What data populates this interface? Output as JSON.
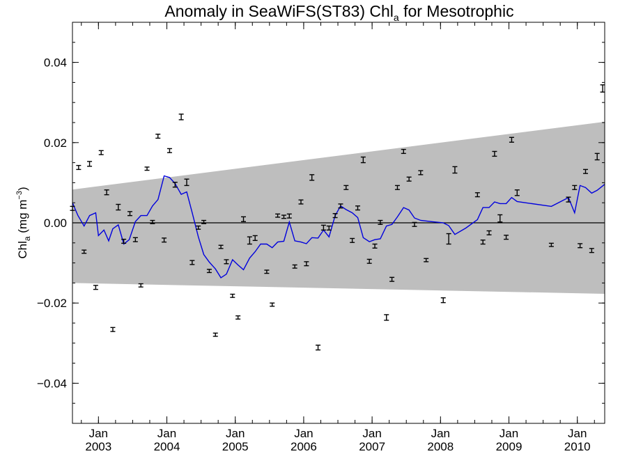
{
  "chart_data": {
    "type": "line",
    "title_main": "Anomaly in SeaWiFS(ST83) Chl",
    "title_sub": "a",
    "title_tail": " for Mesotrophic",
    "ylabel_main": "Chl",
    "ylabel_sub": "a",
    "ylabel_units_pre": " (mg m",
    "ylabel_units_sup": "−3",
    "ylabel_units_post": ")",
    "xlim": [
      2002.62,
      2010.4
    ],
    "ylim": [
      -0.05,
      0.05
    ],
    "y_ticks": [
      {
        "value": -0.04,
        "label": "−0.04"
      },
      {
        "value": -0.02,
        "label": "−0.02"
      },
      {
        "value": 0.0,
        "label": "0.00"
      },
      {
        "value": 0.02,
        "label": "0.02"
      },
      {
        "value": 0.04,
        "label": "0.04"
      }
    ],
    "x_ticks": [
      {
        "value": 2003.0,
        "month": "Jan",
        "year": "2003"
      },
      {
        "value": 2004.0,
        "month": "Jan",
        "year": "2004"
      },
      {
        "value": 2005.0,
        "month": "Jan",
        "year": "2005"
      },
      {
        "value": 2006.0,
        "month": "Jan",
        "year": "2006"
      },
      {
        "value": 2007.0,
        "month": "Jan",
        "year": "2007"
      },
      {
        "value": 2008.0,
        "month": "Jan",
        "year": "2008"
      },
      {
        "value": 2009.0,
        "month": "Jan",
        "year": "2009"
      },
      {
        "value": 2010.0,
        "month": "Jan",
        "year": "2010"
      }
    ],
    "zero_line": 0.0,
    "band": {
      "x": [
        2002.62,
        2010.4
      ],
      "upper": [
        0.0083,
        0.0252
      ],
      "lower": [
        -0.015,
        -0.0177
      ],
      "color": "#bebebe"
    },
    "line_color": "#0000dd",
    "point_color": "#000000",
    "points": [
      {
        "x": 2002.62,
        "y": 0.0036,
        "e": 0.0005
      },
      {
        "x": 2002.71,
        "y": 0.0138,
        "e": 0.0005
      },
      {
        "x": 2002.79,
        "y": -0.0072,
        "e": 0.0004
      },
      {
        "x": 2002.87,
        "y": 0.0147,
        "e": 0.0006
      },
      {
        "x": 2002.96,
        "y": -0.0161,
        "e": 0.0005
      },
      {
        "x": 2003.04,
        "y": 0.0175,
        "e": 0.0005
      },
      {
        "x": 2003.12,
        "y": 0.0076,
        "e": 0.0006
      },
      {
        "x": 2003.21,
        "y": -0.0266,
        "e": 0.0005
      },
      {
        "x": 2003.29,
        "y": 0.0039,
        "e": 0.0007
      },
      {
        "x": 2003.37,
        "y": -0.0046,
        "e": 0.0005
      },
      {
        "x": 2003.46,
        "y": 0.0023,
        "e": 0.0005
      },
      {
        "x": 2003.54,
        "y": -0.0042,
        "e": 0.0005
      },
      {
        "x": 2003.62,
        "y": -0.0156,
        "e": 0.0004
      },
      {
        "x": 2003.71,
        "y": 0.0135,
        "e": 0.0004
      },
      {
        "x": 2003.79,
        "y": 0.0002,
        "e": 0.0004
      },
      {
        "x": 2003.87,
        "y": 0.0216,
        "e": 0.0005
      },
      {
        "x": 2003.96,
        "y": -0.0043,
        "e": 0.0005
      },
      {
        "x": 2004.04,
        "y": 0.018,
        "e": 0.0005
      },
      {
        "x": 2004.12,
        "y": 0.0095,
        "e": 0.0006
      },
      {
        "x": 2004.21,
        "y": 0.0264,
        "e": 0.0007
      },
      {
        "x": 2004.29,
        "y": 0.0101,
        "e": 0.0008
      },
      {
        "x": 2004.37,
        "y": -0.0099,
        "e": 0.0005
      },
      {
        "x": 2004.46,
        "y": -0.0012,
        "e": 0.0004
      },
      {
        "x": 2004.54,
        "y": 0.0002,
        "e": 0.0004
      },
      {
        "x": 2004.62,
        "y": -0.012,
        "e": 0.0004
      },
      {
        "x": 2004.71,
        "y": -0.0279,
        "e": 0.0004
      },
      {
        "x": 2004.79,
        "y": -0.006,
        "e": 0.0004
      },
      {
        "x": 2004.87,
        "y": -0.0097,
        "e": 0.0005
      },
      {
        "x": 2004.96,
        "y": -0.0182,
        "e": 0.0004
      },
      {
        "x": 2005.04,
        "y": -0.0236,
        "e": 0.0004
      },
      {
        "x": 2005.12,
        "y": 0.0009,
        "e": 0.0006
      },
      {
        "x": 2005.21,
        "y": -0.0044,
        "e": 0.0009
      },
      {
        "x": 2005.29,
        "y": -0.0038,
        "e": 0.0006
      },
      {
        "x": 2005.46,
        "y": -0.0122,
        "e": 0.0004
      },
      {
        "x": 2005.54,
        "y": -0.0204,
        "e": 0.0004
      },
      {
        "x": 2005.62,
        "y": 0.0018,
        "e": 0.0004
      },
      {
        "x": 2005.71,
        "y": 0.0015,
        "e": 0.0004
      },
      {
        "x": 2005.79,
        "y": 0.0017,
        "e": 0.0005
      },
      {
        "x": 2005.87,
        "y": -0.0109,
        "e": 0.0004
      },
      {
        "x": 2005.96,
        "y": 0.0052,
        "e": 0.0005
      },
      {
        "x": 2006.04,
        "y": -0.0102,
        "e": 0.0005
      },
      {
        "x": 2006.12,
        "y": 0.0113,
        "e": 0.0007
      },
      {
        "x": 2006.21,
        "y": -0.0311,
        "e": 0.0006
      },
      {
        "x": 2006.29,
        "y": -0.0012,
        "e": 0.0006
      },
      {
        "x": 2006.37,
        "y": -0.0013,
        "e": 0.0005
      },
      {
        "x": 2006.46,
        "y": 0.0018,
        "e": 0.0005
      },
      {
        "x": 2006.54,
        "y": 0.0042,
        "e": 0.0005
      },
      {
        "x": 2006.62,
        "y": 0.0088,
        "e": 0.0005
      },
      {
        "x": 2006.71,
        "y": -0.0044,
        "e": 0.0005
      },
      {
        "x": 2006.79,
        "y": 0.0037,
        "e": 0.0005
      },
      {
        "x": 2006.87,
        "y": 0.0157,
        "e": 0.0007
      },
      {
        "x": 2006.96,
        "y": -0.0096,
        "e": 0.0005
      },
      {
        "x": 2007.04,
        "y": -0.0058,
        "e": 0.0005
      },
      {
        "x": 2007.12,
        "y": 0.0001,
        "e": 0.0005
      },
      {
        "x": 2007.21,
        "y": -0.0236,
        "e": 0.0007
      },
      {
        "x": 2007.29,
        "y": -0.0141,
        "e": 0.0005
      },
      {
        "x": 2007.37,
        "y": 0.0088,
        "e": 0.0005
      },
      {
        "x": 2007.46,
        "y": 0.0178,
        "e": 0.0005
      },
      {
        "x": 2007.54,
        "y": 0.0109,
        "e": 0.0005
      },
      {
        "x": 2007.62,
        "y": -0.0004,
        "e": 0.0005
      },
      {
        "x": 2007.71,
        "y": 0.0125,
        "e": 0.0005
      },
      {
        "x": 2007.79,
        "y": -0.0093,
        "e": 0.0004
      },
      {
        "x": 2008.04,
        "y": -0.0193,
        "e": 0.0006
      },
      {
        "x": 2008.12,
        "y": -0.004,
        "e": 0.0013
      },
      {
        "x": 2008.21,
        "y": 0.0132,
        "e": 0.0008
      },
      {
        "x": 2008.54,
        "y": 0.007,
        "e": 0.0005
      },
      {
        "x": 2008.62,
        "y": -0.0048,
        "e": 0.0005
      },
      {
        "x": 2008.71,
        "y": -0.0025,
        "e": 0.0005
      },
      {
        "x": 2008.79,
        "y": 0.0172,
        "e": 0.0006
      },
      {
        "x": 2008.87,
        "y": 0.0011,
        "e": 0.0009
      },
      {
        "x": 2008.96,
        "y": -0.0036,
        "e": 0.0005
      },
      {
        "x": 2009.04,
        "y": 0.0207,
        "e": 0.0006
      },
      {
        "x": 2009.12,
        "y": 0.0075,
        "e": 0.0007
      },
      {
        "x": 2009.62,
        "y": -0.0055,
        "e": 0.0004
      },
      {
        "x": 2009.87,
        "y": 0.0058,
        "e": 0.0006
      },
      {
        "x": 2009.96,
        "y": 0.0088,
        "e": 0.0005
      },
      {
        "x": 2010.04,
        "y": -0.0057,
        "e": 0.0005
      },
      {
        "x": 2010.12,
        "y": 0.0128,
        "e": 0.0005
      },
      {
        "x": 2010.21,
        "y": -0.0069,
        "e": 0.0005
      },
      {
        "x": 2010.29,
        "y": 0.0165,
        "e": 0.0008
      },
      {
        "x": 2010.37,
        "y": 0.0335,
        "e": 0.0009
      }
    ],
    "smooth_line": [
      [
        2002.62,
        0.005
      ],
      [
        2002.7,
        0.0018
      ],
      [
        2002.79,
        -0.0008
      ],
      [
        2002.87,
        0.0018
      ],
      [
        2002.96,
        0.0025
      ],
      [
        2003.0,
        -0.0032
      ],
      [
        2003.08,
        -0.0018
      ],
      [
        2003.15,
        -0.0045
      ],
      [
        2003.21,
        -0.0015
      ],
      [
        2003.29,
        -0.0005
      ],
      [
        2003.37,
        -0.0053
      ],
      [
        2003.45,
        -0.0042
      ],
      [
        2003.54,
        0.0003
      ],
      [
        2003.62,
        0.0018
      ],
      [
        2003.71,
        0.0018
      ],
      [
        2003.79,
        0.0042
      ],
      [
        2003.87,
        0.0058
      ],
      [
        2003.96,
        0.0117
      ],
      [
        2004.04,
        0.0113
      ],
      [
        2004.12,
        0.0098
      ],
      [
        2004.21,
        0.0071
      ],
      [
        2004.29,
        0.0077
      ],
      [
        2004.37,
        0.0025
      ],
      [
        2004.46,
        -0.0035
      ],
      [
        2004.54,
        -0.0079
      ],
      [
        2004.62,
        -0.0098
      ],
      [
        2004.71,
        -0.0115
      ],
      [
        2004.79,
        -0.0137
      ],
      [
        2004.87,
        -0.0128
      ],
      [
        2004.96,
        -0.0092
      ],
      [
        2005.04,
        -0.0105
      ],
      [
        2005.12,
        -0.0117
      ],
      [
        2005.21,
        -0.0088
      ],
      [
        2005.29,
        -0.0072
      ],
      [
        2005.37,
        -0.0053
      ],
      [
        2005.46,
        -0.0053
      ],
      [
        2005.54,
        -0.0062
      ],
      [
        2005.62,
        -0.0048
      ],
      [
        2005.71,
        -0.0046
      ],
      [
        2005.79,
        0.0002
      ],
      [
        2005.87,
        -0.0045
      ],
      [
        2005.96,
        -0.0048
      ],
      [
        2006.04,
        -0.0052
      ],
      [
        2006.12,
        -0.0037
      ],
      [
        2006.21,
        -0.0038
      ],
      [
        2006.29,
        -0.0018
      ],
      [
        2006.37,
        -0.0035
      ],
      [
        2006.46,
        0.0018
      ],
      [
        2006.54,
        0.0042
      ],
      [
        2006.62,
        0.0033
      ],
      [
        2006.71,
        0.0025
      ],
      [
        2006.79,
        0.0013
      ],
      [
        2006.87,
        -0.0037
      ],
      [
        2006.96,
        -0.0047
      ],
      [
        2007.04,
        -0.0042
      ],
      [
        2007.12,
        -0.004
      ],
      [
        2007.21,
        -0.0008
      ],
      [
        2007.29,
        -0.0004
      ],
      [
        2007.37,
        0.0015
      ],
      [
        2007.46,
        0.0038
      ],
      [
        2007.54,
        0.0032
      ],
      [
        2007.62,
        0.0012
      ],
      [
        2007.71,
        0.0006
      ],
      [
        2007.87,
        0.0003
      ],
      [
        2008.04,
        0.0
      ],
      [
        2008.12,
        -0.0007
      ],
      [
        2008.21,
        -0.0029
      ],
      [
        2008.37,
        -0.0013
      ],
      [
        2008.54,
        0.0008
      ],
      [
        2008.62,
        0.0038
      ],
      [
        2008.71,
        0.0038
      ],
      [
        2008.79,
        0.0052
      ],
      [
        2008.87,
        0.0048
      ],
      [
        2008.96,
        0.0048
      ],
      [
        2009.04,
        0.0063
      ],
      [
        2009.12,
        0.0053
      ],
      [
        2009.62,
        0.0041
      ],
      [
        2009.87,
        0.0063
      ],
      [
        2009.96,
        0.0025
      ],
      [
        2010.04,
        0.0093
      ],
      [
        2010.12,
        0.0088
      ],
      [
        2010.21,
        0.0074
      ],
      [
        2010.29,
        0.0081
      ],
      [
        2010.4,
        0.0096
      ]
    ]
  }
}
